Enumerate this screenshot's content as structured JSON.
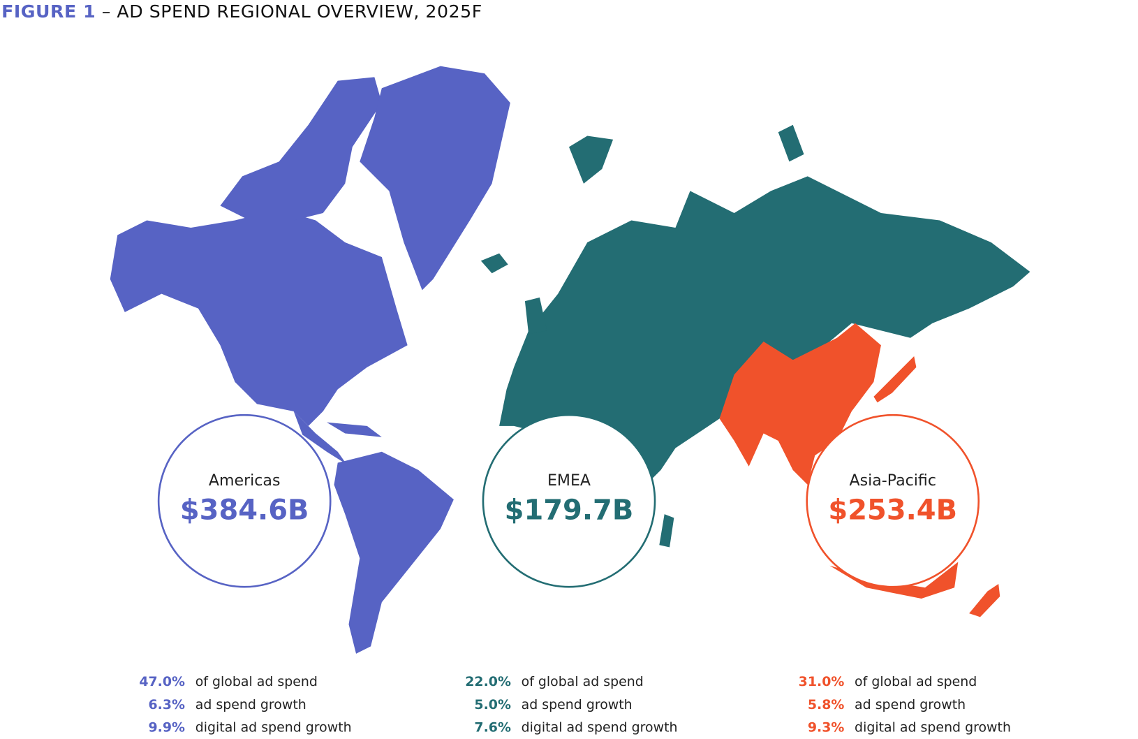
{
  "title": {
    "prefix": "FIGURE 1",
    "text": " – AD SPEND REGIONAL OVERVIEW, 2025F"
  },
  "colors": {
    "americas": "#5763c4",
    "emea": "#236d73",
    "asia_pacific": "#f0522b"
  },
  "regions": [
    {
      "name": "Americas",
      "value": "$384.6B",
      "stats": [
        {
          "pct": "47.0%",
          "label": "of global ad spend"
        },
        {
          "pct": "6.3%",
          "label": "ad spend growth"
        },
        {
          "pct": "9.9%",
          "label": "digital ad spend growth"
        }
      ]
    },
    {
      "name": "EMEA",
      "value": "$179.7B",
      "stats": [
        {
          "pct": "22.0%",
          "label": "of global ad spend"
        },
        {
          "pct": "5.0%",
          "label": "ad spend growth"
        },
        {
          "pct": "7.6%",
          "label": "digital ad spend growth"
        }
      ]
    },
    {
      "name": "Asia-Pacific",
      "value": "$253.4B",
      "stats": [
        {
          "pct": "31.0%",
          "label": "of global ad spend"
        },
        {
          "pct": "5.8%",
          "label": "ad spend growth"
        },
        {
          "pct": "9.3%",
          "label": "digital ad spend growth"
        }
      ]
    }
  ]
}
